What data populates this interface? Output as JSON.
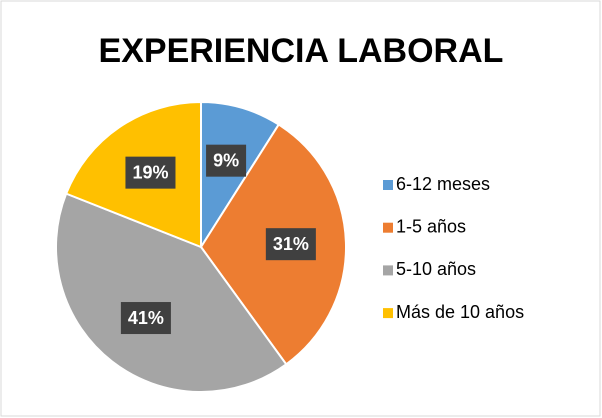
{
  "chart_data": {
    "type": "pie",
    "title": "EXPERIENCIA LABORAL",
    "categories": [
      "6-12 meses",
      "1-5 años",
      "5-10 años",
      "Más de 10 años"
    ],
    "values": [
      9,
      31,
      41,
      19
    ],
    "value_labels": [
      "9%",
      "31%",
      "41%",
      "19%"
    ],
    "colors": [
      "#5b9bd5",
      "#ed7d31",
      "#a5a5a5",
      "#ffc000"
    ],
    "legend": "right"
  }
}
